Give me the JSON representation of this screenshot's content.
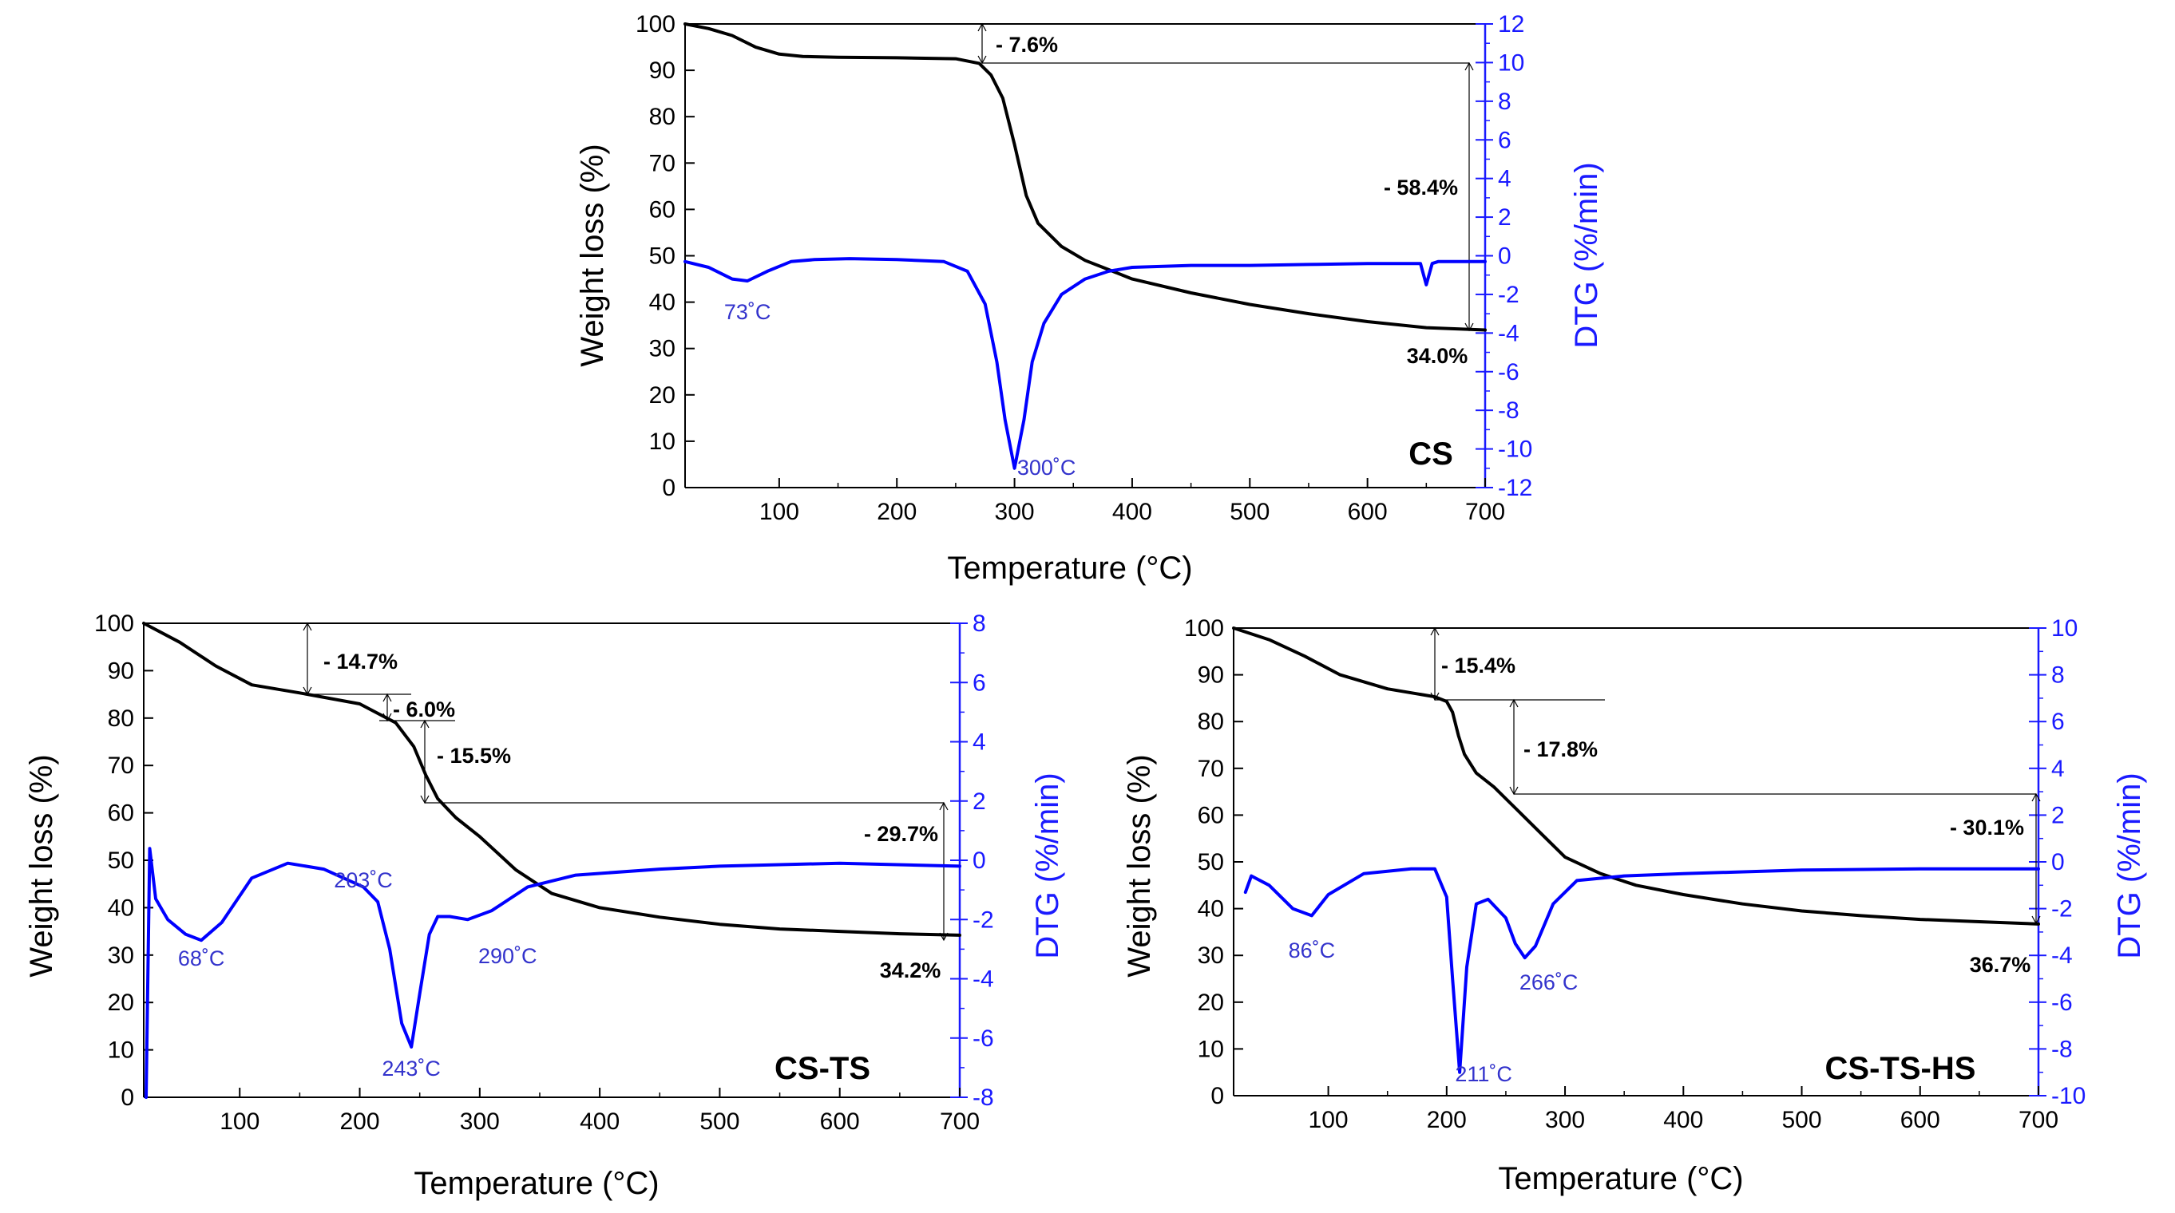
{
  "chart_data": [
    {
      "type": "line",
      "title": "CS",
      "xlabel": "Temperature (°C)",
      "ylabel_left": "Weight loss (%)",
      "ylabel_right": "DTG (%/min)",
      "xlim": [
        20,
        700
      ],
      "ylim_left": [
        0,
        100
      ],
      "ylim_right": [
        -12,
        12
      ],
      "xticks": [
        100,
        200,
        300,
        400,
        500,
        600,
        700
      ],
      "yticks_left": [
        0,
        10,
        20,
        30,
        40,
        50,
        60,
        70,
        80,
        90,
        100
      ],
      "yticks_right": [
        -12,
        -10,
        -8,
        -6,
        -4,
        -2,
        0,
        2,
        4,
        6,
        8,
        10,
        12
      ],
      "series": [
        {
          "name": "Weight loss",
          "axis": "left",
          "color": "#000000",
          "x": [
            20,
            40,
            60,
            80,
            100,
            120,
            150,
            200,
            250,
            270,
            280,
            290,
            300,
            310,
            320,
            340,
            360,
            380,
            400,
            450,
            500,
            550,
            600,
            650,
            700
          ],
          "y": [
            100,
            99,
            97.5,
            95,
            93.5,
            93,
            92.8,
            92.7,
            92.5,
            91.5,
            89,
            84,
            74,
            63,
            57,
            52,
            49,
            47,
            45,
            42,
            39.5,
            37.5,
            35.8,
            34.5,
            34
          ]
        },
        {
          "name": "DTG",
          "axis": "right",
          "color": "#0000ff",
          "x": [
            20,
            40,
            60,
            73,
            90,
            110,
            130,
            160,
            200,
            240,
            260,
            275,
            285,
            292,
            300,
            308,
            315,
            325,
            340,
            360,
            380,
            400,
            450,
            500,
            550,
            600,
            645,
            650,
            655,
            660,
            700
          ],
          "y": [
            -0.3,
            -0.6,
            -1.2,
            -1.3,
            -0.8,
            -0.3,
            -0.2,
            -0.15,
            -0.2,
            -0.3,
            -0.8,
            -2.5,
            -5.5,
            -8.5,
            -11,
            -8.5,
            -5.5,
            -3.5,
            -2,
            -1.2,
            -0.8,
            -0.6,
            -0.5,
            -0.5,
            -0.45,
            -0.4,
            -0.4,
            -1.5,
            -0.4,
            -0.3,
            -0.3
          ]
        }
      ],
      "annotations": [
        "- 7.6%",
        "- 58.4%",
        "34.0%"
      ],
      "peak_labels": [
        {
          "text": "73˚C",
          "x": 73
        },
        {
          "text": "300˚C",
          "x": 300
        }
      ]
    },
    {
      "type": "line",
      "title": "CS-TS",
      "xlabel": "Temperature (°C)",
      "ylabel_left": "Weight loss (%)",
      "ylabel_right": "DTG (%/min)",
      "xlim": [
        20,
        700
      ],
      "ylim_left": [
        0,
        100
      ],
      "ylim_right": [
        -8,
        8
      ],
      "xticks": [
        100,
        200,
        300,
        400,
        500,
        600,
        700
      ],
      "yticks_left": [
        0,
        10,
        20,
        30,
        40,
        50,
        60,
        70,
        80,
        90,
        100
      ],
      "yticks_right": [
        -8,
        -6,
        -4,
        -2,
        0,
        2,
        4,
        6,
        8
      ],
      "series": [
        {
          "name": "Weight loss",
          "axis": "left",
          "color": "#000000",
          "x": [
            20,
            50,
            80,
            110,
            150,
            200,
            230,
            245,
            255,
            265,
            280,
            300,
            330,
            360,
            400,
            450,
            500,
            550,
            600,
            650,
            700
          ],
          "y": [
            100,
            96,
            91,
            87,
            85.3,
            83,
            79,
            74,
            68,
            63,
            59,
            55,
            48,
            43,
            40,
            38,
            36.5,
            35.5,
            35,
            34.5,
            34.2
          ]
        },
        {
          "name": "DTG",
          "axis": "right",
          "color": "#0000ff",
          "x": [
            22,
            25,
            30,
            40,
            55,
            68,
            85,
            110,
            140,
            170,
            203,
            215,
            225,
            235,
            243,
            250,
            258,
            265,
            275,
            290,
            310,
            340,
            380,
            450,
            500,
            600,
            700
          ],
          "y": [
            -8,
            0.4,
            -1.3,
            -2,
            -2.5,
            -2.7,
            -2.1,
            -0.6,
            -0.1,
            -0.3,
            -0.9,
            -1.4,
            -3,
            -5.5,
            -6.3,
            -4.5,
            -2.5,
            -1.9,
            -1.9,
            -2.0,
            -1.7,
            -0.9,
            -0.5,
            -0.3,
            -0.2,
            -0.1,
            -0.2
          ]
        }
      ],
      "annotations": [
        "- 14.7%",
        "- 6.0%",
        "- 15.5%",
        "- 29.7%",
        "34.2%"
      ],
      "peak_labels": [
        {
          "text": "68˚C",
          "x": 68
        },
        {
          "text": "203˚C",
          "x": 203
        },
        {
          "text": "243˚C",
          "x": 243
        },
        {
          "text": "290˚C",
          "x": 290
        }
      ]
    },
    {
      "type": "line",
      "title": "CS-TS-HS",
      "xlabel": "Temperature (°C)",
      "ylabel_left": "Weight loss (%)",
      "ylabel_right": "DTG (%/min)",
      "xlim": [
        20,
        700
      ],
      "ylim_left": [
        0,
        100
      ],
      "ylim_right": [
        -10,
        10
      ],
      "xticks": [
        100,
        200,
        300,
        400,
        500,
        600,
        700
      ],
      "yticks_left": [
        0,
        10,
        20,
        30,
        40,
        50,
        60,
        70,
        80,
        90,
        100
      ],
      "yticks_right": [
        -10,
        -8,
        -6,
        -4,
        -2,
        0,
        2,
        4,
        6,
        8,
        10
      ],
      "series": [
        {
          "name": "Weight loss",
          "axis": "left",
          "color": "#000000",
          "x": [
            20,
            50,
            80,
            110,
            150,
            190,
            200,
            205,
            210,
            215,
            225,
            240,
            260,
            280,
            300,
            330,
            360,
            400,
            450,
            500,
            550,
            600,
            650,
            700
          ],
          "y": [
            100,
            97.5,
            94,
            90,
            87,
            85.3,
            84.3,
            82,
            77,
            73,
            69,
            66,
            61,
            56,
            51,
            47.5,
            45,
            43,
            41,
            39.5,
            38.5,
            37.7,
            37.2,
            36.7
          ]
        },
        {
          "name": "DTG",
          "axis": "right",
          "color": "#0000ff",
          "x": [
            30,
            35,
            50,
            70,
            86,
            100,
            130,
            170,
            190,
            200,
            205,
            211,
            217,
            225,
            235,
            250,
            258,
            266,
            275,
            290,
            310,
            350,
            400,
            500,
            600,
            700
          ],
          "y": [
            -1.3,
            -0.6,
            -1.0,
            -2.0,
            -2.3,
            -1.4,
            -0.5,
            -0.3,
            -0.3,
            -1.5,
            -5.0,
            -9.0,
            -4.5,
            -1.8,
            -1.6,
            -2.4,
            -3.5,
            -4.1,
            -3.6,
            -1.8,
            -0.8,
            -0.6,
            -0.5,
            -0.35,
            -0.3,
            -0.3
          ]
        }
      ],
      "annotations": [
        "- 15.4%",
        "- 17.8%",
        "- 30.1%",
        "36.7%"
      ],
      "peak_labels": [
        {
          "text": "86˚C",
          "x": 86
        },
        {
          "text": "211˚C",
          "x": 211
        },
        {
          "text": "266˚C",
          "x": 266
        }
      ]
    }
  ]
}
